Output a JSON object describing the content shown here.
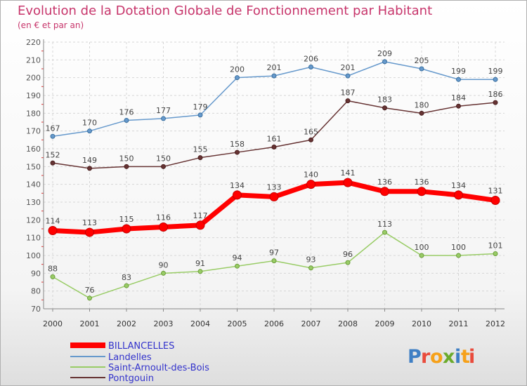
{
  "chart_data": {
    "type": "line",
    "title": "Evolution de la Dotation Globale de Fonctionnement par Habitant",
    "subtitle": "(en € et par an)",
    "x": [
      "2000",
      "2001",
      "2002",
      "2003",
      "2004",
      "2005",
      "2006",
      "2007",
      "2008",
      "2009",
      "2010",
      "2011",
      "2012"
    ],
    "ylim": [
      70,
      220
    ],
    "yticks": [
      70,
      80,
      90,
      100,
      110,
      120,
      130,
      140,
      150,
      160,
      170,
      180,
      190,
      200,
      210,
      220
    ],
    "grid": true,
    "legend_position": "bottom-left",
    "series": [
      {
        "name": "BILLANCELLES",
        "color": "#ff0000",
        "values": [
          114,
          113,
          115,
          116,
          117,
          134,
          133,
          140,
          141,
          136,
          136,
          134,
          131
        ]
      },
      {
        "name": "Landelles",
        "color": "#6699cc",
        "values": [
          167,
          170,
          176,
          177,
          179,
          200,
          201,
          206,
          201,
          209,
          205,
          199,
          199
        ]
      },
      {
        "name": "Saint-Arnoult-des-Bois",
        "color": "#99cc66",
        "values": [
          88,
          76,
          83,
          90,
          91,
          94,
          97,
          93,
          96,
          113,
          100,
          100,
          101
        ]
      },
      {
        "name": "Pontgouin",
        "color": "#663333",
        "values": [
          152,
          149,
          150,
          150,
          155,
          158,
          161,
          165,
          187,
          183,
          180,
          184,
          186
        ]
      }
    ]
  },
  "logo": {
    "text": "Proxiti"
  }
}
